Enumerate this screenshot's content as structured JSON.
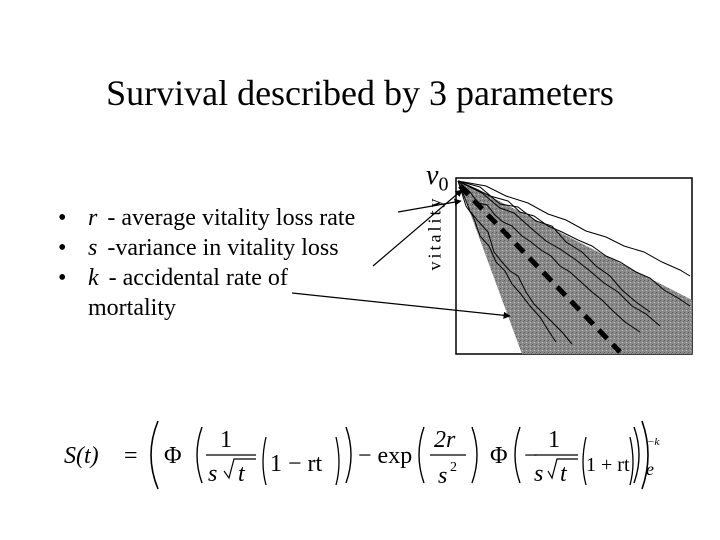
{
  "slide": {
    "title": "Survival described by 3 parameters"
  },
  "bullets": [
    {
      "symbol": "r",
      "text": "- average vitality loss rate"
    },
    {
      "symbol": "s",
      "text": "-variance in vitality loss"
    },
    {
      "symbol": "k",
      "text": "- accidental rate of",
      "continuation": "mortality"
    }
  ],
  "figure": {
    "v_label": "v",
    "v_subscript": "0",
    "y_axis_label": "vitality"
  },
  "formula": {
    "lhs": "S(t)",
    "eq": "=",
    "phi": "Φ",
    "one": "1",
    "s": "s",
    "t": "t",
    "one_minus_rt": "1 − rt",
    "one_plus_rt": "1 + rt",
    "minus_exp": "− exp",
    "two_r": "2r",
    "s_squared": "s",
    "two": "2",
    "minus": "−",
    "e": "e",
    "exponent": "−kt"
  }
}
